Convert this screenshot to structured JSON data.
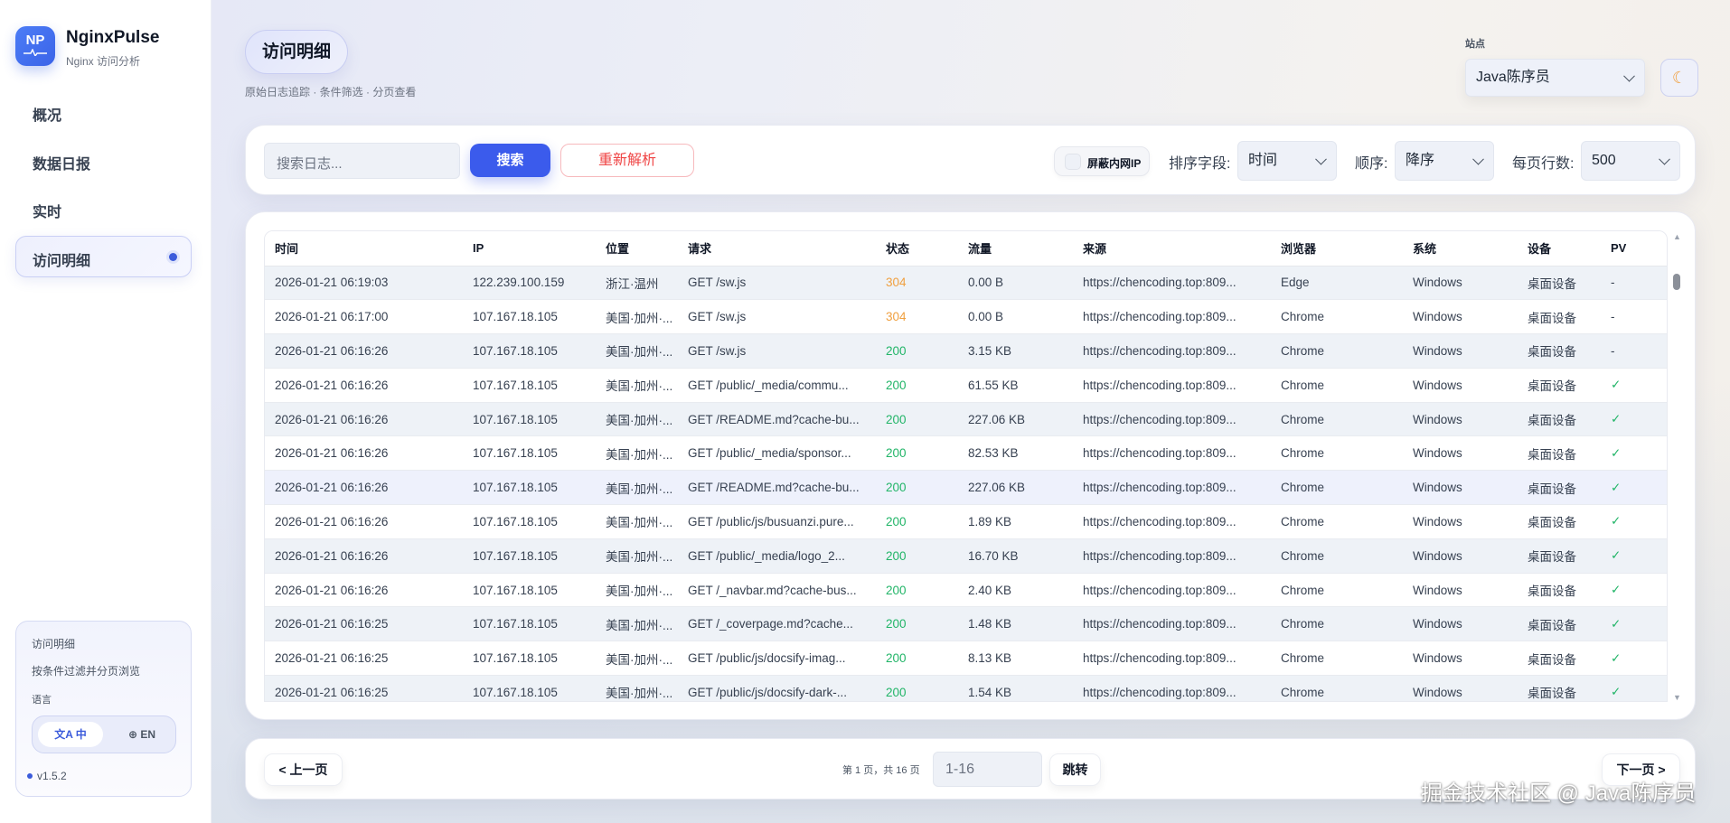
{
  "app": {
    "name": "NginxPulse",
    "subtitle": "Nginx 访问分析",
    "logo_text": "NP"
  },
  "sidebar": {
    "items": [
      {
        "label": "概况"
      },
      {
        "label": "数据日报"
      },
      {
        "label": "实时"
      },
      {
        "label": "访问明细",
        "active": true
      }
    ],
    "card": {
      "title": "访问明细",
      "desc": "按条件过滤并分页浏览",
      "lang_label": "语言",
      "lang_zh": "中",
      "lang_en": "EN",
      "version": "v1.5.2"
    }
  },
  "header": {
    "title": "访问明细",
    "subtitle": "原始日志追踪 · 条件筛选 · 分页查看",
    "site_label": "站点",
    "site_value": "Java陈序员",
    "theme_icon": "moon-icon"
  },
  "filters": {
    "search_placeholder": "搜索日志...",
    "search_label": "搜索",
    "reparse_label": "重新解析",
    "mask_ip_label": "屏蔽内网IP",
    "mask_ip_checked": false,
    "sort_field_label": "排序字段:",
    "sort_field_value": "时间",
    "order_label": "顺序:",
    "order_value": "降序",
    "page_size_label": "每页行数:",
    "page_size_value": "500"
  },
  "table": {
    "columns": [
      "时间",
      "IP",
      "位置",
      "请求",
      "状态",
      "流量",
      "来源",
      "浏览器",
      "系统",
      "设备",
      "PV"
    ],
    "rows": [
      [
        "2026-01-21 06:19:03",
        "122.239.100.159",
        "浙江·温州",
        "GET /sw.js",
        "304",
        "0.00 B",
        "https://chencoding.top:809...",
        "Edge",
        "Windows",
        "桌面设备",
        "-"
      ],
      [
        "2026-01-21 06:17:00",
        "107.167.18.105",
        "美国·加州·...",
        "GET /sw.js",
        "304",
        "0.00 B",
        "https://chencoding.top:809...",
        "Chrome",
        "Windows",
        "桌面设备",
        "-"
      ],
      [
        "2026-01-21 06:16:26",
        "107.167.18.105",
        "美国·加州·...",
        "GET /sw.js",
        "200",
        "3.15 KB",
        "https://chencoding.top:809...",
        "Chrome",
        "Windows",
        "桌面设备",
        "-"
      ],
      [
        "2026-01-21 06:16:26",
        "107.167.18.105",
        "美国·加州·...",
        "GET /public/_media/commu...",
        "200",
        "61.55 KB",
        "https://chencoding.top:809...",
        "Chrome",
        "Windows",
        "桌面设备",
        "✓"
      ],
      [
        "2026-01-21 06:16:26",
        "107.167.18.105",
        "美国·加州·...",
        "GET /README.md?cache-bu...",
        "200",
        "227.06 KB",
        "https://chencoding.top:809...",
        "Chrome",
        "Windows",
        "桌面设备",
        "✓"
      ],
      [
        "2026-01-21 06:16:26",
        "107.167.18.105",
        "美国·加州·...",
        "GET /public/_media/sponsor...",
        "200",
        "82.53 KB",
        "https://chencoding.top:809...",
        "Chrome",
        "Windows",
        "桌面设备",
        "✓"
      ],
      [
        "2026-01-21 06:16:26",
        "107.167.18.105",
        "美国·加州·...",
        "GET /README.md?cache-bu...",
        "200",
        "227.06 KB",
        "https://chencoding.top:809...",
        "Chrome",
        "Windows",
        "桌面设备",
        "✓"
      ],
      [
        "2026-01-21 06:16:26",
        "107.167.18.105",
        "美国·加州·...",
        "GET /public/js/busuanzi.pure...",
        "200",
        "1.89 KB",
        "https://chencoding.top:809...",
        "Chrome",
        "Windows",
        "桌面设备",
        "✓"
      ],
      [
        "2026-01-21 06:16:26",
        "107.167.18.105",
        "美国·加州·...",
        "GET /public/_media/logo_2...",
        "200",
        "16.70 KB",
        "https://chencoding.top:809...",
        "Chrome",
        "Windows",
        "桌面设备",
        "✓"
      ],
      [
        "2026-01-21 06:16:26",
        "107.167.18.105",
        "美国·加州·...",
        "GET /_navbar.md?cache-bus...",
        "200",
        "2.40 KB",
        "https://chencoding.top:809...",
        "Chrome",
        "Windows",
        "桌面设备",
        "✓"
      ],
      [
        "2026-01-21 06:16:25",
        "107.167.18.105",
        "美国·加州·...",
        "GET /_coverpage.md?cache...",
        "200",
        "1.48 KB",
        "https://chencoding.top:809...",
        "Chrome",
        "Windows",
        "桌面设备",
        "✓"
      ],
      [
        "2026-01-21 06:16:25",
        "107.167.18.105",
        "美国·加州·...",
        "GET /public/js/docsify-imag...",
        "200",
        "8.13 KB",
        "https://chencoding.top:809...",
        "Chrome",
        "Windows",
        "桌面设备",
        "✓"
      ],
      [
        "2026-01-21 06:16:25",
        "107.167.18.105",
        "美国·加州·...",
        "GET /public/js/docsify-dark-...",
        "200",
        "1.54 KB",
        "https://chencoding.top:809...",
        "Chrome",
        "Windows",
        "桌面设备",
        "✓"
      ]
    ]
  },
  "pagination": {
    "prev_label": "< 上一页",
    "info": "第 1 页，共 16 页",
    "jump_placeholder": "1-16",
    "jump_label": "跳转",
    "next_label": "下一页 >"
  },
  "watermark": "掘金技术社区 @ Java陈序员",
  "colors": {
    "accent": "#3b5bdb",
    "status_304": "#f0a040",
    "status_200": "#22b568",
    "danger": "#ef4444"
  }
}
